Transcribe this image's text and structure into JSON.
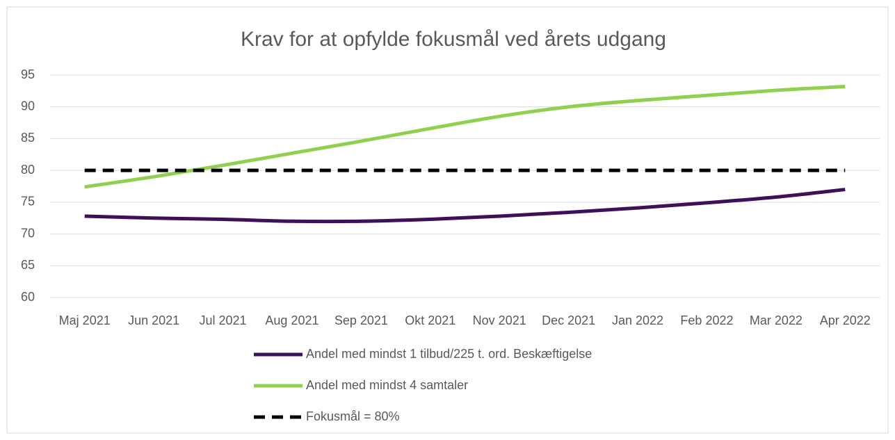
{
  "chart_data": {
    "type": "line",
    "title": "Krav for at opfylde fokusmål ved årets udgang",
    "categories": [
      "Maj 2021",
      "Jun 2021",
      "Jul 2021",
      "Aug 2021",
      "Sep 2021",
      "Okt 2021",
      "Nov 2021",
      "Dec 2021",
      "Jan 2022",
      "Feb 2022",
      "Mar 2022",
      "Apr 2022"
    ],
    "series": [
      {
        "name": "Andel med mindst 1 tilbud/225 t. ord. Beskæftigelse",
        "color": "#3f0f5a",
        "dashed": false,
        "values": [
          72.8,
          72.5,
          72.3,
          72.0,
          72.0,
          72.3,
          72.8,
          73.4,
          74.1,
          74.9,
          75.8,
          77.0
        ]
      },
      {
        "name": "Andel med mindst 4 samtaler",
        "color": "#8fd14f",
        "dashed": false,
        "values": [
          77.4,
          79.0,
          80.8,
          82.7,
          84.6,
          86.6,
          88.5,
          90.0,
          91.0,
          91.8,
          92.6,
          93.2
        ]
      },
      {
        "name": "Fokusmål = 80%",
        "color": "#000000",
        "dashed": true,
        "values": [
          80,
          80,
          80,
          80,
          80,
          80,
          80,
          80,
          80,
          80,
          80,
          80
        ]
      }
    ],
    "ylim": [
      60,
      95
    ],
    "yticks": [
      60,
      65,
      70,
      75,
      80,
      85,
      90,
      95
    ],
    "grid": true,
    "legend": "bottom"
  }
}
